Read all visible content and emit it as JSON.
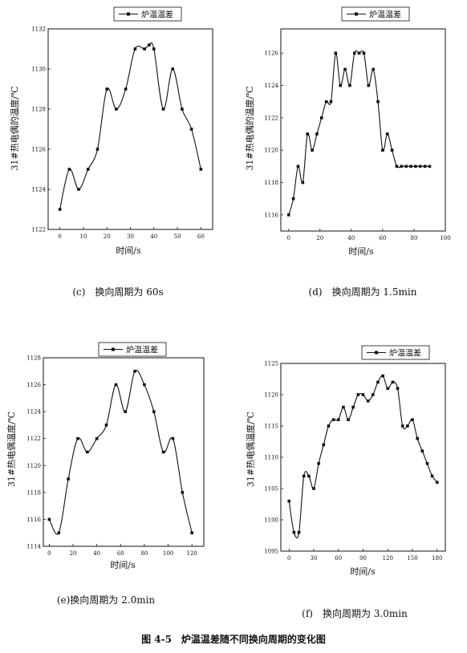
{
  "figure_caption": "图 4-5　炉温温差随不同换向周期的变化图",
  "chart_data": [
    {
      "type": "line",
      "caption": "(c)　换向周期为 60s",
      "legend": "炉温温差",
      "xlabel": "时间/s",
      "ylabel": "31#热电偶的温度/℃",
      "xlim": [
        -5,
        65
      ],
      "ylim": [
        1122,
        1132
      ],
      "xticks": [
        0,
        10,
        20,
        30,
        40,
        50,
        60
      ],
      "yticks": [
        1122,
        1124,
        1126,
        1128,
        1130,
        1132
      ],
      "series": [
        {
          "x": [
            0,
            4,
            8,
            12,
            16,
            20,
            24,
            28,
            32,
            36,
            38,
            40,
            44,
            48,
            52,
            56,
            60
          ],
          "y": [
            1123,
            1125,
            1124,
            1125,
            1126,
            1129,
            1128,
            1129,
            1131,
            1131,
            1131.2,
            1131,
            1128,
            1130,
            1128,
            1127,
            1125
          ]
        }
      ]
    },
    {
      "type": "line",
      "caption": "(d)　换向周期为 1.5min",
      "legend": "炉温温差",
      "xlabel": "时间/s",
      "ylabel": "31#热电偶的温度/℃",
      "xlim": [
        -5,
        100
      ],
      "ylim": [
        1115,
        1127.5
      ],
      "xticks": [
        0,
        20,
        40,
        60,
        80,
        100
      ],
      "yticks": [
        1116,
        1118,
        1120,
        1122,
        1124,
        1126
      ],
      "series": [
        {
          "x": [
            0,
            3,
            6,
            9,
            12,
            15,
            18,
            21,
            24,
            27,
            30,
            33,
            36,
            39,
            42,
            45,
            48,
            51,
            54,
            57,
            60,
            63,
            66,
            69,
            72,
            75,
            78,
            81,
            84,
            87,
            90
          ],
          "y": [
            1116,
            1117,
            1119,
            1118,
            1121,
            1120,
            1121,
            1122,
            1123,
            1123,
            1126,
            1124,
            1125,
            1124,
            1126,
            1126,
            1126,
            1124,
            1125,
            1123,
            1120,
            1121,
            1120,
            1119,
            1119,
            1119,
            1119,
            1119,
            1119,
            1119,
            1119
          ]
        }
      ]
    },
    {
      "type": "line",
      "caption": "(e)换向周期为 2.0min",
      "legend": "炉温温差",
      "xlabel": "时间/s",
      "ylabel": "31#热电偶温度/℃",
      "xlim": [
        -5,
        130
      ],
      "ylim": [
        1114,
        1128
      ],
      "xticks": [
        0,
        20,
        40,
        60,
        80,
        100,
        120
      ],
      "yticks": [
        1114,
        1116,
        1118,
        1120,
        1122,
        1124,
        1126,
        1128
      ],
      "series": [
        {
          "x": [
            0,
            8,
            16,
            24,
            32,
            40,
            48,
            56,
            64,
            72,
            80,
            88,
            96,
            104,
            112,
            120
          ],
          "y": [
            1116,
            1115,
            1119,
            1122,
            1121,
            1122,
            1123,
            1126,
            1124,
            1127,
            1126,
            1124,
            1121,
            1122,
            1118,
            1115
          ]
        }
      ]
    },
    {
      "type": "line",
      "caption": "(f)　换向周期为 3.0min",
      "legend": "炉温温差",
      "xlabel": "时间/s",
      "ylabel": "31#热电偶温度/℃",
      "xlim": [
        -10,
        190
      ],
      "ylim": [
        1095,
        1125
      ],
      "xticks": [
        0,
        30,
        60,
        90,
        120,
        150,
        180
      ],
      "yticks": [
        1095,
        1100,
        1105,
        1110,
        1115,
        1120,
        1125
      ],
      "series": [
        {
          "x": [
            0,
            6,
            12,
            18,
            24,
            30,
            36,
            42,
            48,
            54,
            60,
            66,
            72,
            78,
            84,
            90,
            96,
            102,
            108,
            114,
            120,
            126,
            132,
            138,
            144,
            150,
            156,
            162,
            168,
            174,
            180
          ],
          "y": [
            1103,
            1098,
            1098,
            1107,
            1107,
            1105,
            1109,
            1112,
            1115,
            1116,
            1116,
            1118,
            1116,
            1118,
            1120,
            1120,
            1119,
            1120,
            1122,
            1123,
            1121,
            1122,
            1121,
            1115,
            1115,
            1116,
            1113,
            1111,
            1109,
            1107,
            1106
          ]
        }
      ]
    }
  ]
}
